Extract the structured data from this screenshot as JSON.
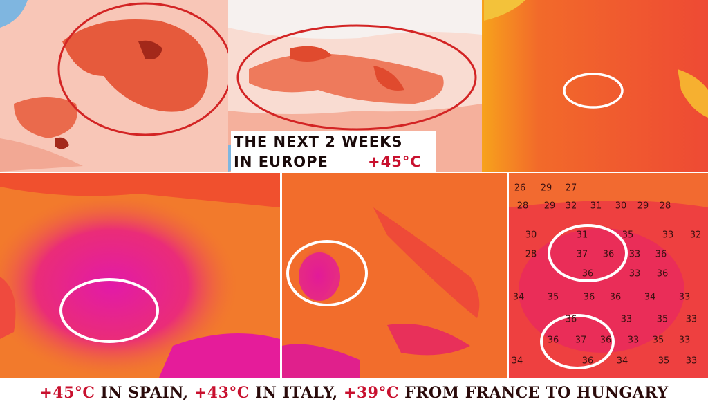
{
  "headline": {
    "line1": "THE NEXT 2 WEEKS",
    "line2": "IN EUROPE",
    "temperature": "+45°C"
  },
  "caption": {
    "parts": [
      {
        "text": "+45°C",
        "color": "#c8102e"
      },
      {
        "text": " IN SPAIN, ",
        "color": "#2a0a0a"
      },
      {
        "text": "+43°C",
        "color": "#c8102e"
      },
      {
        "text": " IN ITALY, ",
        "color": "#2a0a0a"
      },
      {
        "text": "+39°C",
        "color": "#c8102e"
      },
      {
        "text": " FROM FRANCE TO HUNGARY",
        "color": "#2a0a0a"
      }
    ]
  },
  "zoom_map": {
    "rows": [
      [
        "26",
        "29",
        "27"
      ],
      [
        "28",
        "29",
        "32",
        "31",
        "30",
        "29",
        "28"
      ],
      [
        "30",
        "31",
        "35",
        "33",
        "32"
      ],
      [
        "28",
        "37",
        "36",
        "33",
        "36"
      ],
      [
        "36",
        "33",
        "36"
      ],
      [
        "34",
        "35",
        "36",
        "36",
        "34",
        "33"
      ],
      [
        "36",
        "33",
        "35",
        "33"
      ],
      [
        "36",
        "37",
        "36",
        "33",
        "35",
        "33"
      ],
      [
        "34",
        "36",
        "34",
        "35",
        "33"
      ]
    ]
  }
}
